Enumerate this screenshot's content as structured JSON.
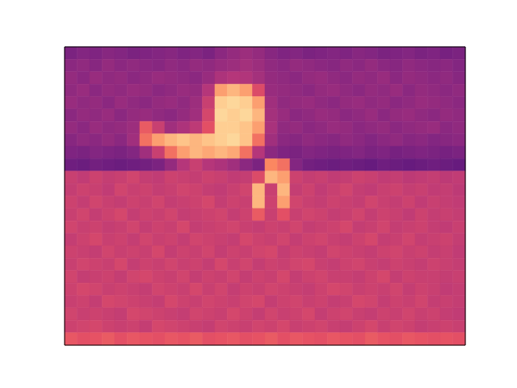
{
  "chart_data": {
    "type": "heatmap",
    "tick_labels": false,
    "xlim": [
      0,
      32
    ],
    "ylim": [
      0,
      24
    ],
    "color_range": [
      0,
      100
    ],
    "cells": [
      [
        36,
        38,
        37,
        39,
        38,
        36,
        37,
        38,
        39,
        37,
        38,
        36,
        40,
        42,
        44,
        42,
        39,
        37,
        38,
        36,
        37,
        38,
        37,
        39,
        38,
        36,
        37,
        38,
        36,
        37,
        35,
        36
      ],
      [
        40,
        41,
        39,
        42,
        40,
        41,
        40,
        39,
        41,
        40,
        42,
        41,
        43,
        44,
        46,
        44,
        41,
        40,
        42,
        41,
        40,
        39,
        41,
        40,
        42,
        40,
        39,
        41,
        40,
        39,
        40,
        38
      ],
      [
        42,
        40,
        43,
        41,
        42,
        40,
        41,
        43,
        42,
        41,
        40,
        43,
        48,
        50,
        49,
        46,
        42,
        41,
        40,
        42,
        43,
        41,
        40,
        42,
        41,
        43,
        40,
        42,
        41,
        40,
        41,
        39
      ],
      [
        41,
        43,
        40,
        42,
        41,
        43,
        42,
        40,
        41,
        43,
        42,
        50,
        80,
        85,
        80,
        60,
        43,
        42,
        41,
        40,
        42,
        43,
        41,
        40,
        42,
        41,
        43,
        40,
        42,
        41,
        40,
        41
      ],
      [
        43,
        41,
        42,
        40,
        43,
        41,
        40,
        42,
        43,
        41,
        44,
        55,
        90,
        92,
        90,
        80,
        45,
        41,
        42,
        43,
        41,
        40,
        42,
        43,
        41,
        42,
        40,
        41,
        43,
        42,
        41,
        40
      ],
      [
        40,
        42,
        41,
        43,
        40,
        42,
        43,
        41,
        40,
        42,
        45,
        58,
        92,
        90,
        92,
        85,
        46,
        43,
        40,
        41,
        43,
        42,
        40,
        41,
        43,
        40,
        42,
        43,
        41,
        40,
        42,
        41
      ],
      [
        42,
        40,
        43,
        41,
        42,
        44,
        65,
        55,
        45,
        48,
        52,
        62,
        90,
        90,
        88,
        80,
        47,
        41,
        42,
        40,
        41,
        43,
        42,
        40,
        41,
        42,
        40,
        41,
        42,
        43,
        40,
        41
      ],
      [
        39,
        41,
        40,
        42,
        40,
        45,
        70,
        80,
        85,
        88,
        85,
        88,
        90,
        92,
        88,
        70,
        45,
        40,
        39,
        41,
        40,
        39,
        41,
        40,
        38,
        40,
        41,
        39,
        40,
        38,
        39,
        40
      ],
      [
        37,
        36,
        38,
        37,
        36,
        38,
        45,
        55,
        70,
        80,
        85,
        82,
        85,
        82,
        70,
        50,
        40,
        37,
        36,
        38,
        37,
        36,
        37,
        38,
        36,
        37,
        35,
        36,
        37,
        36,
        35,
        36
      ],
      [
        33,
        32,
        34,
        33,
        32,
        33,
        34,
        36,
        42,
        50,
        55,
        50,
        48,
        45,
        40,
        36,
        75,
        70,
        38,
        34,
        33,
        32,
        33,
        32,
        31,
        33,
        32,
        31,
        32,
        33,
        32,
        31
      ],
      [
        55,
        53,
        56,
        54,
        55,
        57,
        54,
        53,
        56,
        55,
        54,
        56,
        55,
        53,
        54,
        60,
        85,
        80,
        56,
        54,
        55,
        53,
        54,
        56,
        55,
        53,
        54,
        52,
        53,
        54,
        52,
        53
      ],
      [
        54,
        56,
        55,
        53,
        57,
        55,
        56,
        54,
        55,
        57,
        56,
        54,
        53,
        55,
        57,
        85,
        55,
        85,
        54,
        56,
        53,
        55,
        57,
        54,
        53,
        55,
        56,
        54,
        55,
        53,
        54,
        52
      ],
      [
        56,
        54,
        57,
        55,
        54,
        56,
        55,
        57,
        54,
        55,
        56,
        58,
        54,
        56,
        55,
        85,
        56,
        80,
        57,
        55,
        54,
        56,
        55,
        54,
        57,
        55,
        54,
        56,
        53,
        55,
        54,
        53
      ],
      [
        55,
        57,
        54,
        56,
        58,
        54,
        56,
        55,
        57,
        54,
        55,
        56,
        57,
        54,
        56,
        65,
        55,
        62,
        55,
        57,
        56,
        54,
        55,
        57,
        54,
        56,
        55,
        53,
        56,
        54,
        55,
        54
      ],
      [
        57,
        55,
        56,
        54,
        55,
        57,
        54,
        56,
        55,
        58,
        54,
        55,
        56,
        57,
        55,
        54,
        56,
        55,
        57,
        54,
        55,
        56,
        58,
        54,
        55,
        57,
        54,
        55,
        56,
        54,
        53,
        55
      ],
      [
        54,
        56,
        58,
        55,
        56,
        54,
        57,
        55,
        56,
        54,
        57,
        56,
        55,
        54,
        58,
        56,
        55,
        57,
        54,
        56,
        57,
        55,
        54,
        56,
        58,
        54,
        55,
        57,
        54,
        55,
        56,
        54
      ],
      [
        56,
        55,
        54,
        57,
        55,
        56,
        55,
        58,
        54,
        56,
        55,
        57,
        54,
        56,
        55,
        57,
        58,
        54,
        56,
        55,
        54,
        57,
        56,
        55,
        54,
        56,
        57,
        55,
        56,
        54,
        55,
        53
      ],
      [
        55,
        57,
        56,
        55,
        58,
        54,
        56,
        55,
        57,
        55,
        56,
        54,
        58,
        55,
        57,
        54,
        56,
        55,
        57,
        58,
        55,
        54,
        56,
        57,
        55,
        54,
        56,
        55,
        54,
        56,
        55,
        54
      ],
      [
        57,
        54,
        55,
        56,
        54,
        57,
        58,
        56,
        55,
        57,
        54,
        56,
        55,
        57,
        54,
        56,
        55,
        58,
        54,
        56,
        57,
        55,
        55,
        54,
        56,
        58,
        54,
        56,
        55,
        55,
        54,
        55
      ],
      [
        56,
        58,
        57,
        55,
        56,
        55,
        54,
        57,
        56,
        55,
        58,
        55,
        57,
        54,
        56,
        55,
        57,
        56,
        55,
        54,
        56,
        58,
        57,
        55,
        56,
        55,
        57,
        54,
        56,
        55,
        53,
        54
      ],
      [
        55,
        56,
        54,
        58,
        57,
        56,
        55,
        54,
        58,
        56,
        55,
        57,
        56,
        55,
        57,
        58,
        54,
        56,
        57,
        55,
        56,
        54,
        55,
        58,
        57,
        54,
        56,
        55,
        57,
        54,
        55,
        54
      ],
      [
        57,
        55,
        56,
        55,
        54,
        58,
        57,
        56,
        55,
        54,
        57,
        56,
        55,
        58,
        56,
        54,
        57,
        55,
        56,
        58,
        54,
        56,
        57,
        55,
        54,
        56,
        55,
        57,
        55,
        56,
        54,
        53
      ],
      [
        56,
        57,
        58,
        56,
        55,
        56,
        54,
        58,
        57,
        56,
        55,
        54,
        57,
        56,
        55,
        57,
        56,
        58,
        55,
        56,
        57,
        55,
        54,
        56,
        58,
        55,
        57,
        56,
        54,
        55,
        56,
        55
      ],
      [
        64,
        62,
        63,
        65,
        62,
        64,
        63,
        62,
        64,
        63,
        65,
        62,
        63,
        64,
        62,
        63,
        65,
        62,
        64,
        63,
        62,
        64,
        63,
        62,
        65,
        63,
        62,
        64,
        63,
        62,
        63,
        62
      ]
    ]
  }
}
